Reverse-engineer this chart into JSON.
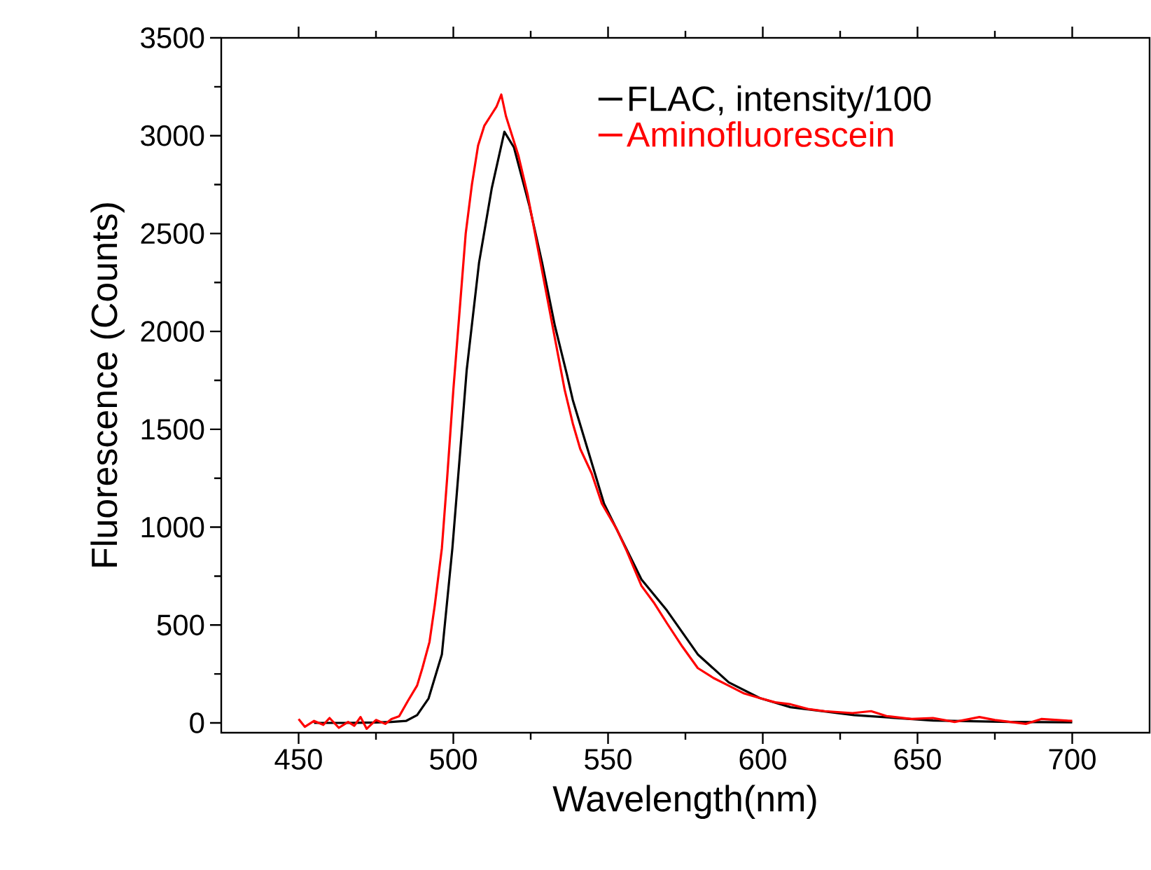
{
  "chart_data": {
    "type": "line",
    "xlabel": "Wavelength(nm)",
    "ylabel": "Fluorescence (Counts)",
    "xlim": [
      425,
      725
    ],
    "ylim": [
      -50,
      3500
    ],
    "xticks": [
      450,
      500,
      550,
      600,
      650,
      700
    ],
    "yticks": [
      0,
      500,
      1000,
      1500,
      2000,
      2500,
      3000,
      3500
    ],
    "legend": "top right",
    "series": [
      {
        "name": "FLAC, intensity/100",
        "color": "#000000",
        "x": [
          455,
          465,
          475,
          480,
          484.7,
          488.3,
          492,
          496.3,
          499.7,
          503.3,
          504.3,
          508.3,
          512.4,
          516.5,
          519.6,
          524.6,
          528.7,
          532.8,
          536.7,
          538.6,
          548.7,
          560.8,
          569,
          579,
          589,
          599,
          609,
          629.5,
          655,
          680,
          700
        ],
        "values": [
          0,
          0,
          2,
          5,
          10,
          40,
          125,
          350,
          893,
          1600,
          1800,
          2350,
          2730,
          3020,
          2940,
          2640,
          2350,
          2030,
          1780,
          1650,
          1120,
          733,
          575,
          350,
          207,
          127,
          80,
          40,
          12,
          5,
          3
        ]
      },
      {
        "name": "Aminofluorescein",
        "color": "#ff0000",
        "x": [
          450,
          452,
          455,
          458,
          460,
          463,
          466,
          468,
          470,
          472,
          475,
          478,
          480,
          482.5,
          485.3,
          488.3,
          490,
          492.3,
          494,
          496.3,
          498,
          500,
          502,
          504,
          506,
          508,
          510,
          512,
          514,
          515.5,
          517,
          519,
          521,
          524,
          527,
          530,
          533,
          536,
          538.6,
          541,
          544.7,
          548,
          552.8,
          556,
          560.8,
          565,
          569,
          574,
          579,
          584,
          589,
          594,
          599,
          604,
          609,
          615,
          620,
          629,
          635,
          640,
          648,
          655,
          662,
          670,
          675,
          685,
          690,
          700
        ],
        "values": [
          20,
          -20,
          10,
          -10,
          25,
          -25,
          5,
          -15,
          30,
          -30,
          15,
          -5,
          20,
          34,
          112,
          191,
          280,
          414,
          600,
          893,
          1250,
          1700,
          2100,
          2500,
          2750,
          2950,
          3050,
          3100,
          3150,
          3210,
          3100,
          3000,
          2900,
          2700,
          2450,
          2200,
          1950,
          1700,
          1530,
          1400,
          1275,
          1120,
          990,
          880,
          700,
          610,
          510,
          390,
          280,
          230,
          190,
          150,
          127,
          105,
          95,
          70,
          60,
          50,
          60,
          35,
          20,
          25,
          5,
          30,
          15,
          -5,
          20,
          10
        ]
      }
    ]
  }
}
